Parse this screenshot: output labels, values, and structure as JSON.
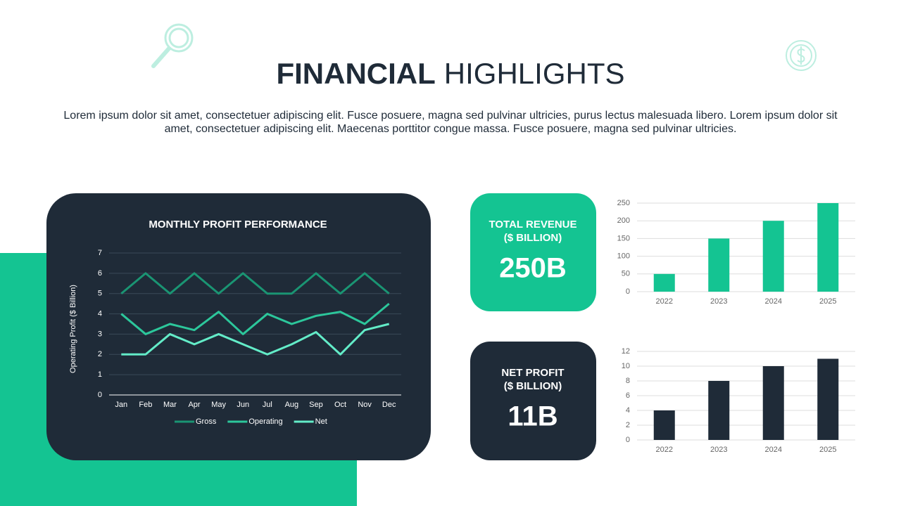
{
  "header": {
    "title": [
      "FINANCIAL",
      "HIGHLIGHTS"
    ],
    "text": "Lorem ipsum dolor sit amet, consectetuer adipiscing elit. Fusce posuere, magna sed pulvinar ultricies, purus lectus malesuada libero. Lorem ipsum dolor sit amet, consectetuer adipiscing elit. Maecenas porttitor congue massa. Fusce posuere, magna sed pulvinar ultricies."
  },
  "kpis": [
    {
      "label": [
        "TOTAL REVENUE",
        "($ BILLION)"
      ],
      "value": "250B"
    },
    {
      "label": [
        "NET PROFIT",
        "($ BILLION)"
      ],
      "value": "11B"
    }
  ],
  "chart_data": [
    {
      "type": "line",
      "title": "MONTHLY PROFIT PERFORMANCE",
      "y_label": "Operating Profit ($ Billion)",
      "categories": [
        "Jan",
        "Feb",
        "Mar",
        "Apr",
        "May",
        "Jun",
        "Jul",
        "Aug",
        "Sep",
        "Oct",
        "Nov",
        "Dec"
      ],
      "series": [
        {
          "name": "Gross",
          "color": "#1a9573",
          "values": [
            5,
            6,
            5,
            6,
            5,
            6,
            5,
            5,
            6,
            5,
            6,
            5
          ]
        },
        {
          "name": "Operating",
          "color": "#2cc79b",
          "values": [
            4,
            3,
            3.5,
            3.2,
            4.1,
            3,
            4,
            3.5,
            3.9,
            4.1,
            3.5,
            4.5
          ]
        },
        {
          "name": "Net",
          "color": "#63ecc8",
          "values": [
            2,
            2,
            3,
            2.5,
            3,
            2.5,
            2,
            2.5,
            3.1,
            2,
            3.2,
            3.5
          ]
        }
      ],
      "ylim": [
        0,
        7
      ],
      "yticks": [
        0,
        1,
        2,
        3,
        4,
        5,
        6,
        7
      ],
      "grid": true,
      "legend": "bottom"
    },
    {
      "type": "bar",
      "categories": [
        "2022",
        "2023",
        "2024",
        "2025"
      ],
      "values": [
        50,
        150,
        200,
        250
      ],
      "color": "#14c492",
      "ylim": [
        0,
        250
      ],
      "yticks": [
        0,
        50,
        100,
        150,
        200,
        250
      ],
      "grid": true
    },
    {
      "type": "bar",
      "categories": [
        "2022",
        "2023",
        "2024",
        "2025"
      ],
      "values": [
        4,
        8,
        10,
        11
      ],
      "color": "#1f2b38",
      "ylim": [
        0,
        12
      ],
      "yticks": [
        0,
        2,
        4,
        6,
        8,
        10,
        12
      ],
      "grid": true
    }
  ]
}
